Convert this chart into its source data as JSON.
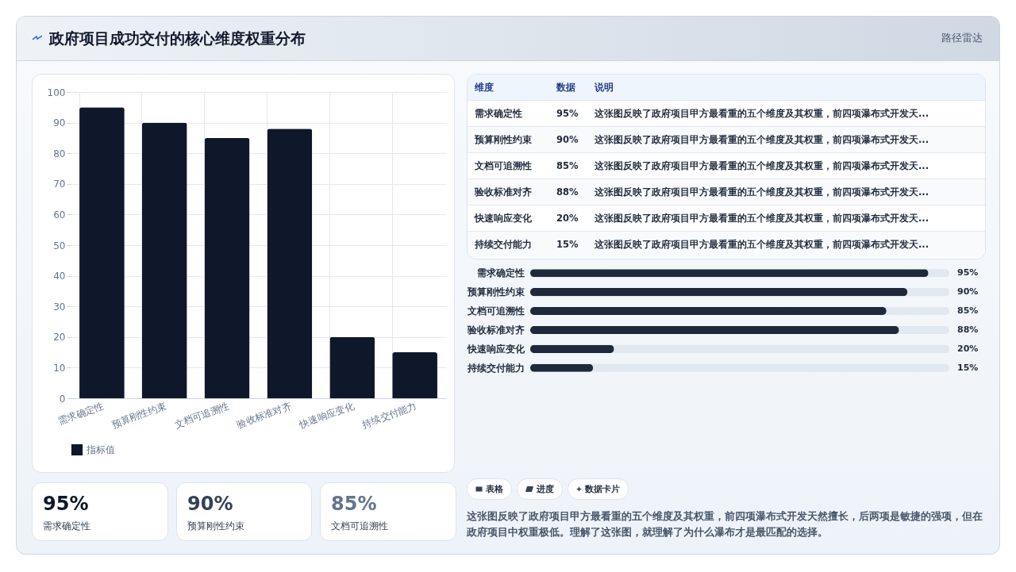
{
  "chart_data": [
    {
      "type": "bar",
      "title": "政府项目成功交付的核心维度权重分布",
      "categories": [
        "需求确定性",
        "预算刚性约束",
        "文档可追溯性",
        "验收标准对齐",
        "快速响应变化",
        "持续交付能力"
      ],
      "series": [
        {
          "name": "指标值",
          "color": "#0f172a",
          "values": [
            95,
            90,
            85,
            88,
            20,
            15
          ]
        }
      ],
      "ylim": [
        0,
        100
      ],
      "yticks": [
        0,
        10,
        20,
        30,
        40,
        50,
        60,
        70,
        80,
        90,
        100
      ],
      "grid": true,
      "legend": "bottom"
    },
    {
      "type": "other",
      "subtitle": "路径雷达",
      "categories": [
        "需求确定性",
        "预算刚性约束",
        "文档可追溯性",
        "验收标准对齐",
        "快速响应变化",
        "持续交付能力"
      ],
      "value_labels": [
        "95%",
        "90%",
        "85%",
        "88%",
        "20%",
        "15%"
      ],
      "annotations": [
        "维度",
        "数据",
        "说明",
        "这张图反映了政府项目甲方最看重的五个维度及其权重，前四项瀑布式开发天...",
        "这张图反映了政府项目甲方最看重的五个维度及其权重，前四项瀑布式开发天...",
        "这张图反映了政府项目甲方最看重的五个维度及其权重，前四项瀑布式开发天...",
        "这张图反映了政府项目甲方最看重的五个维度及其权重，前四项瀑布式开发天...",
        "这张图反映了政府项目甲方最看重的五个维度及其权重，前四项瀑布式开发天...",
        "这张图反映了政府项目甲方最看重的五个维度及其权重，前四项瀑布式开发天..."
      ]
    },
    {
      "type": "bar",
      "orientation": "horizontal",
      "categories": [
        "需求确定性",
        "预算刚性约束",
        "文档可追溯性",
        "验收标准对齐",
        "快速响应变化",
        "持续交付能力"
      ],
      "values": [
        95,
        90,
        85,
        88,
        20,
        15
      ],
      "color": "#1e293b",
      "value_labels": [
        "95%",
        "90%",
        "85%",
        "88%",
        "20%",
        "15%"
      ],
      "xlim": [
        0,
        100
      ],
      "tick_labels": "y"
    },
    {
      "type": "other",
      "categories": [
        "需求确定性",
        "预算刚性约束",
        "文档可追溯性"
      ],
      "value_labels": [
        "95%",
        "90%",
        "85%"
      ],
      "annotations": [
        "表格",
        "进度",
        "数据卡片",
        "这张图反映了政府项目甲方最看重的五个维度及其权重，前四项瀑布式开发天然擅长，后两项是敏捷的强项，但在政府项目中权重极低。理解了这张图，就理解了为什么瀑布才是最匹配的选择。"
      ]
    }
  ]
}
